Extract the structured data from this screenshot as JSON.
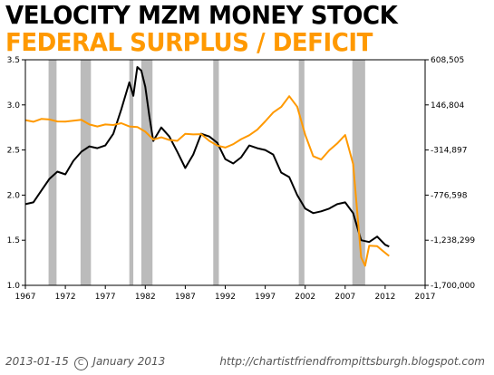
{
  "title": "VELOCITY MZM MONEY STOCK",
  "subtitle": "FEDERAL SURPLUS / DEFICIT",
  "footer": {
    "date": "2013-01-15",
    "copyright_symbol": "C",
    "copyright_text": "January 2013",
    "url": "http://chartistfriendfrompittsburgh.blogspot.com"
  },
  "colors": {
    "velocity": "#000000",
    "deficit": "#ff9900",
    "recession": "#bbbbbb",
    "title_secondary": "#ff9900"
  },
  "chart_data": {
    "type": "line",
    "title": "VELOCITY MZM MONEY STOCK",
    "subtitle": "FEDERAL SURPLUS / DEFICIT",
    "xlim": [
      1967,
      2017
    ],
    "x_ticks": [
      "1967",
      "1972",
      "1977",
      "1982",
      "1987",
      "1992",
      "1997",
      "2002",
      "2007",
      "2012",
      "2017"
    ],
    "ylim_left": [
      1.0,
      3.5
    ],
    "y_ticks_left": [
      "1.0",
      "1.5",
      "2.0",
      "2.5",
      "3.0",
      "3.5"
    ],
    "ylim_right": [
      -1700000,
      608505
    ],
    "y_ticks_right": [
      "608,505",
      "146,804",
      "-314,897",
      "-776,598",
      "-1,238,299",
      "-1,700,000"
    ],
    "grid": false,
    "recessions": [
      [
        1969.9,
        1970.9
      ],
      [
        1973.9,
        1975.2
      ],
      [
        1980.0,
        1980.5
      ],
      [
        1981.5,
        1982.9
      ],
      [
        1990.5,
        1991.2
      ],
      [
        2001.2,
        2001.9
      ],
      [
        2007.9,
        2009.5
      ]
    ],
    "series": [
      {
        "axis": "left",
        "color": "#000000",
        "x": [
          1967.0,
          1968.0,
          1969.0,
          1970.0,
          1971.0,
          1972.0,
          1973.0,
          1974.0,
          1975.0,
          1976.0,
          1977.0,
          1978.0,
          1979.0,
          1980.0,
          1980.5,
          1981.0,
          1981.5,
          1982.0,
          1982.5,
          1983.0,
          1984.0,
          1985.0,
          1986.0,
          1987.0,
          1988.0,
          1989.0,
          1990.0,
          1991.0,
          1992.0,
          1993.0,
          1994.0,
          1995.0,
          1996.0,
          1997.0,
          1998.0,
          1999.0,
          2000.0,
          2001.0,
          2002.0,
          2003.0,
          2004.0,
          2005.0,
          2006.0,
          2007.0,
          2008.0,
          2009.0,
          2010.0,
          2011.0,
          2012.0,
          2012.5
        ],
        "values": [
          1.9,
          1.92,
          2.05,
          2.18,
          2.26,
          2.23,
          2.38,
          2.48,
          2.54,
          2.52,
          2.55,
          2.68,
          2.95,
          3.25,
          3.1,
          3.42,
          3.38,
          3.2,
          2.88,
          2.6,
          2.75,
          2.65,
          2.48,
          2.3,
          2.45,
          2.68,
          2.65,
          2.58,
          2.4,
          2.35,
          2.42,
          2.55,
          2.52,
          2.5,
          2.45,
          2.25,
          2.2,
          2.0,
          1.85,
          1.8,
          1.82,
          1.85,
          1.9,
          1.92,
          1.8,
          1.5,
          1.48,
          1.54,
          1.45,
          1.43
        ]
      },
      {
        "axis": "right",
        "color": "#ff9900",
        "x": [
          1967.0,
          1968.0,
          1969.0,
          1970.0,
          1971.0,
          1972.0,
          1973.0,
          1974.0,
          1975.0,
          1976.0,
          1977.0,
          1978.0,
          1979.0,
          1980.0,
          1981.0,
          1982.0,
          1983.0,
          1984.0,
          1985.0,
          1986.0,
          1987.0,
          1988.0,
          1989.0,
          1990.0,
          1991.0,
          1992.0,
          1993.0,
          1994.0,
          1995.0,
          1996.0,
          1997.0,
          1998.0,
          1999.0,
          2000.0,
          2001.0,
          2002.0,
          2003.0,
          2004.0,
          2005.0,
          2006.0,
          2007.0,
          2008.0,
          2009.0,
          2009.5,
          2010.0,
          2011.0,
          2012.0,
          2012.5
        ],
        "values": [
          -8600,
          -25200,
          3200,
          -2800,
          -23000,
          -23400,
          -14900,
          -6100,
          -53200,
          -73700,
          -53700,
          -59200,
          -40700,
          -73800,
          -79000,
          -128000,
          -207800,
          -185400,
          -212300,
          -221200,
          -149700,
          -155200,
          -152600,
          -221000,
          -269200,
          -290300,
          -255100,
          -203200,
          -164000,
          -107400,
          -21900,
          69300,
          125600,
          236200,
          128200,
          -157800,
          -377600,
          -412700,
          -318300,
          -248200,
          -160700,
          -458600,
          -1412700,
          -1500000,
          -1294400,
          -1299600,
          -1367000,
          -1400000
        ]
      }
    ]
  }
}
